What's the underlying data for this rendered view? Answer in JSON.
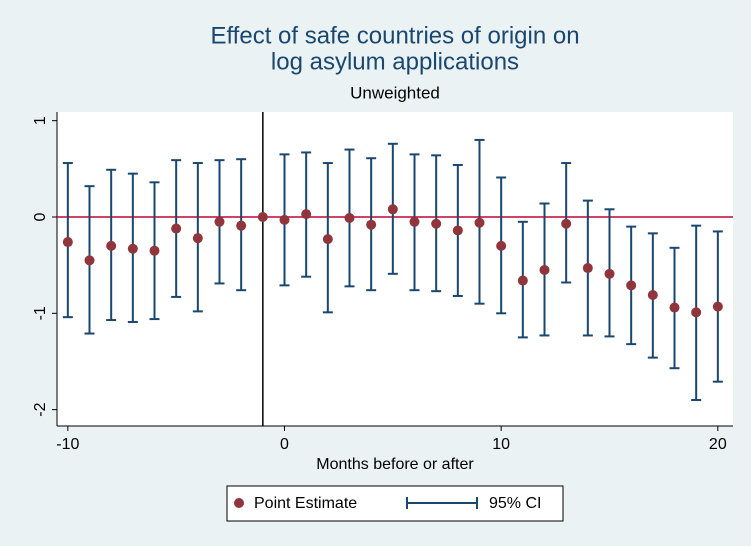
{
  "chart_data": {
    "type": "errorbar",
    "title": [
      "Effect of safe countries of origin on",
      "log asylum applications"
    ],
    "subtitle": "Unweighted",
    "x_label": "Months before or after",
    "x": [
      -10,
      -9,
      -8,
      -7,
      -6,
      -5,
      -4,
      -3,
      -2,
      -1,
      0,
      1,
      2,
      3,
      4,
      5,
      6,
      7,
      8,
      9,
      10,
      11,
      12,
      13,
      14,
      15,
      16,
      17,
      18,
      19,
      20
    ],
    "series": [
      {
        "name": "Point Estimate",
        "color": "#90353b",
        "values": [
          -0.26,
          -0.45,
          -0.3,
          -0.33,
          -0.35,
          -0.12,
          -0.22,
          -0.05,
          -0.09,
          0,
          -0.03,
          0.03,
          -0.23,
          -0.01,
          -0.08,
          0.08,
          -0.05,
          -0.07,
          -0.14,
          -0.06,
          -0.3,
          -0.66,
          -0.55,
          -0.07,
          -0.53,
          -0.59,
          -0.71,
          -0.81,
          -0.94,
          -0.99,
          -0.93
        ]
      },
      {
        "name": "95% CI",
        "color": "#1a476f",
        "lower": [
          -1.04,
          -1.21,
          -1.07,
          -1.09,
          -1.06,
          -0.83,
          -0.98,
          -0.69,
          -0.76,
          null,
          -0.71,
          -0.62,
          -0.99,
          -0.72,
          -0.76,
          -0.59,
          -0.76,
          -0.77,
          -0.82,
          -0.9,
          -1.0,
          -1.25,
          -1.23,
          -0.68,
          -1.23,
          -1.24,
          -1.32,
          -1.46,
          -1.57,
          -1.9,
          -1.71
        ],
        "upper": [
          0.56,
          0.32,
          0.49,
          0.45,
          0.36,
          0.59,
          0.56,
          0.59,
          0.6,
          null,
          0.65,
          0.67,
          0.56,
          0.7,
          0.61,
          0.76,
          0.65,
          0.64,
          0.54,
          0.8,
          0.41,
          -0.05,
          0.14,
          0.56,
          0.17,
          0.08,
          -0.1,
          -0.17,
          -0.32,
          -0.09,
          -0.15
        ]
      }
    ],
    "reference_lines": {
      "y": 0,
      "x": -1
    },
    "xlim": [
      -10.5,
      20.7
    ],
    "ylim": [
      -2.17,
      1.09
    ],
    "xticks": [
      -10,
      0,
      10,
      20
    ],
    "yticks": [
      -2,
      -1,
      0,
      1
    ]
  }
}
